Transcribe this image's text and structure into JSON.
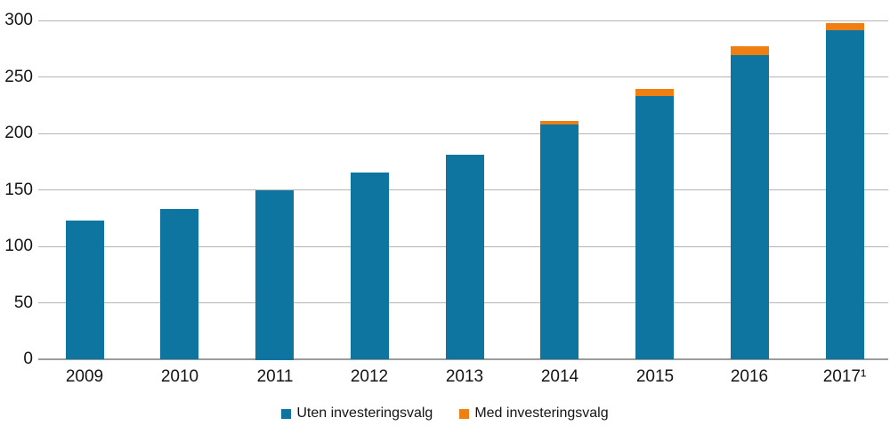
{
  "chart_data": {
    "type": "bar",
    "stacked": true,
    "title": "",
    "xlabel": "",
    "ylabel": "",
    "categories": [
      "2009",
      "2010",
      "2011",
      "2012",
      "2013",
      "2014",
      "2015",
      "2016",
      "2017¹"
    ],
    "series": [
      {
        "name": "Uten investeringsvalg",
        "color": "#0E75A0",
        "values": [
          123,
          133,
          150,
          165,
          181,
          208,
          233,
          269,
          292
        ]
      },
      {
        "name": "Med investeringsvalg",
        "color": "#EE7F10",
        "values": [
          0,
          0,
          0,
          0,
          0,
          3,
          6,
          8,
          6
        ]
      }
    ],
    "yticks": [
      0,
      50,
      100,
      150,
      200,
      250,
      300
    ],
    "ylim": [
      0,
      300
    ],
    "grid": true,
    "legend_position": "bottom"
  },
  "colors": {
    "gridline": "#b5b5b5",
    "axis_line": "#9c9c9c",
    "text": "#141414",
    "background": "#ffffff"
  }
}
